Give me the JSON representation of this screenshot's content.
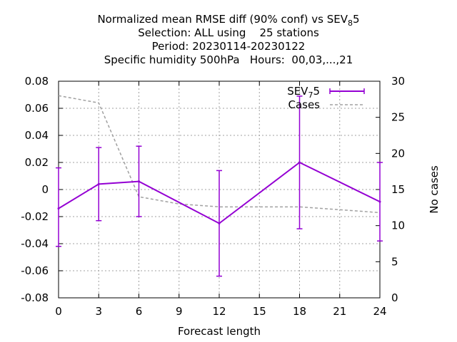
{
  "title": {
    "line1": "Normalized mean RMSE diff (90% conf) vs SEV",
    "line1_sub": "8",
    "line1_tail": "5",
    "line2": "Selection: ALL using    25 stations",
    "line3": "Period: 20230114-20230122",
    "line4": "Specific humidity 500hPa   Hours:  00,03,...,21"
  },
  "chart_data": {
    "type": "line",
    "xlabel": "Forecast length",
    "ylabel_right": "No cases",
    "xlim": [
      0,
      24
    ],
    "ylim": [
      -0.08,
      0.08
    ],
    "y2lim": [
      0,
      30
    ],
    "grid": true,
    "legend_placement": "top-right",
    "x_ticks": [
      "0",
      "3",
      "6",
      "9",
      "12",
      "15",
      "18",
      "21",
      "24"
    ],
    "y_ticks": [
      "0.08",
      "0.06",
      "0.04",
      "0.02",
      "0",
      "-0.02",
      "-0.04",
      "-0.06",
      "-0.08"
    ],
    "y2_ticks": [
      "30",
      "25",
      "20",
      "15",
      "10",
      "5",
      "0"
    ],
    "series": [
      {
        "name": "SEV",
        "name_sub": "7",
        "name_tail": "5",
        "color": "#9400d3",
        "x": [
          0,
          3,
          6,
          12,
          18,
          24
        ],
        "y": [
          -0.014,
          0.004,
          0.006,
          -0.025,
          0.02,
          -0.009
        ],
        "err_low": [
          -0.042,
          -0.023,
          -0.02,
          -0.064,
          -0.029,
          -0.038
        ],
        "err_high": [
          0.016,
          0.031,
          0.032,
          0.014,
          0.069,
          0.02
        ]
      },
      {
        "name": "Cases",
        "color": "#a0a0a0",
        "axis": "right",
        "x": [
          0,
          3,
          6,
          9,
          12,
          15,
          18,
          21,
          24
        ],
        "y": [
          28,
          27,
          14,
          13,
          12.6,
          12.6,
          12.6,
          12.2,
          11.8
        ]
      }
    ]
  }
}
